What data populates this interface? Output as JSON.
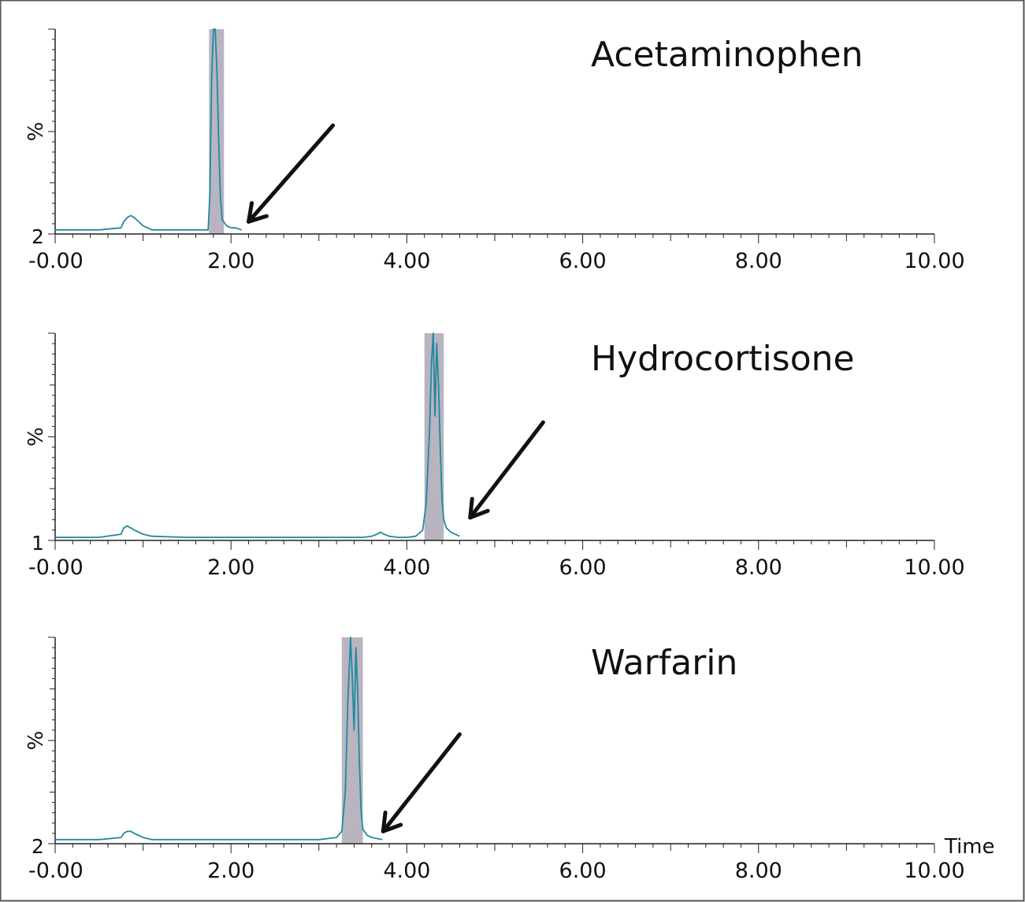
{
  "chart_data": [
    {
      "type": "line",
      "title": "Acetaminophen",
      "ylabel": "%",
      "y_min_label": "2",
      "xlim": [
        0,
        10
      ],
      "ylim": [
        0,
        100
      ],
      "x_tick_labels": [
        "-0.00",
        "2.00",
        "4.00",
        "6.00",
        "8.00",
        "10.00"
      ],
      "line_color": "#1f8aa0",
      "fill_color": "#b9b4c0",
      "integration_window": [
        1.75,
        1.92
      ],
      "trace_end": 2.12,
      "arrow": {
        "from": [
          3.16,
          53
        ],
        "to": [
          2.2,
          6
        ]
      },
      "series": [
        {
          "x": [
            0,
            0.5,
            0.75,
            0.78,
            0.82,
            0.86,
            0.9,
            0.95,
            1.0,
            1.05,
            1.1,
            1.2,
            1.5,
            1.74,
            1.76,
            1.78,
            1.8,
            1.82,
            1.84,
            1.86,
            1.88,
            1.9,
            1.95,
            2.0,
            2.05,
            2.12
          ],
          "y": [
            2,
            2,
            3,
            6,
            8,
            9,
            8,
            6,
            4,
            3,
            2,
            2,
            2,
            2,
            20,
            75,
            100,
            100,
            80,
            45,
            18,
            7,
            4,
            3,
            3,
            2
          ]
        }
      ]
    },
    {
      "type": "line",
      "title": "Hydrocortisone",
      "ylabel": "%",
      "y_min_label": "1",
      "xlim": [
        0,
        10
      ],
      "ylim": [
        0,
        100
      ],
      "x_tick_labels": [
        "-0.00",
        "2.00",
        "4.00",
        "6.00",
        "8.00",
        "10.00"
      ],
      "line_color": "#1f8aa0",
      "fill_color": "#b9b4c0",
      "integration_window": [
        4.2,
        4.42
      ],
      "trace_end": 4.6,
      "arrow": {
        "from": [
          5.55,
          57
        ],
        "to": [
          4.72,
          11
        ]
      },
      "series": [
        {
          "x": [
            0,
            0.5,
            0.75,
            0.78,
            0.82,
            0.86,
            0.9,
            0.95,
            1.0,
            1.1,
            1.5,
            2.0,
            2.5,
            3.0,
            3.5,
            3.6,
            3.66,
            3.7,
            3.74,
            3.8,
            3.9,
            4.0,
            4.1,
            4.18,
            4.22,
            4.26,
            4.28,
            4.3,
            4.32,
            4.34,
            4.36,
            4.38,
            4.4,
            4.42,
            4.45,
            4.5,
            4.6
          ],
          "y": [
            1.5,
            1.5,
            3,
            6,
            7,
            6,
            5,
            4,
            3,
            2,
            1.5,
            1.5,
            1.5,
            1.5,
            1.5,
            2,
            3,
            4,
            3,
            2,
            1.5,
            1.5,
            2,
            5,
            18,
            55,
            85,
            100,
            60,
            95,
            75,
            45,
            20,
            10,
            6,
            4,
            2
          ]
        }
      ]
    },
    {
      "type": "line",
      "title": "Warfarin",
      "ylabel": "%",
      "y_min_label": "2",
      "xlim": [
        0,
        10
      ],
      "ylim": [
        0,
        100
      ],
      "x_tick_labels": [
        "-0.00",
        "2.00",
        "4.00",
        "6.00",
        "8.00",
        "10.00"
      ],
      "xlabel": "Time",
      "line_color": "#1f8aa0",
      "fill_color": "#b9b4c0",
      "integration_window": [
        3.26,
        3.5
      ],
      "trace_end": 3.72,
      "arrow": {
        "from": [
          4.6,
          53
        ],
        "to": [
          3.73,
          6
        ]
      },
      "series": [
        {
          "x": [
            0,
            0.5,
            0.75,
            0.78,
            0.82,
            0.86,
            0.9,
            0.95,
            1.0,
            1.1,
            1.5,
            2.0,
            2.5,
            3.0,
            3.2,
            3.26,
            3.3,
            3.33,
            3.36,
            3.38,
            3.4,
            3.42,
            3.44,
            3.46,
            3.48,
            3.5,
            3.55,
            3.6,
            3.72
          ],
          "y": [
            2,
            2,
            3,
            5,
            6,
            6,
            5,
            4,
            3,
            2,
            2,
            2,
            2,
            2,
            3,
            6,
            25,
            70,
            100,
            80,
            55,
            95,
            75,
            40,
            15,
            7,
            4,
            3,
            2
          ]
        }
      ]
    }
  ]
}
